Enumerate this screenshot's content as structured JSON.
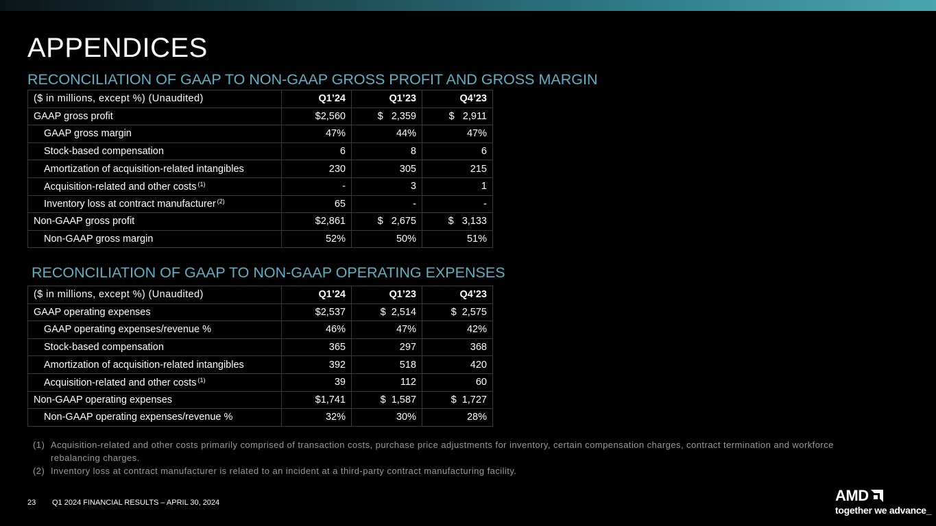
{
  "page_title": "APPENDICES",
  "section1": {
    "title": "RECONCILIATION OF GAAP TO NON-GAAP GROSS PROFIT AND GROSS MARGIN",
    "header": [
      "($ in millions, except %) (Unaudited)",
      "Q1’24",
      "Q1’23",
      "Q4’23"
    ],
    "rows": [
      {
        "label": "GAAP gross profit",
        "note": "",
        "values": [
          "$2,560",
          "$   2,359",
          "$   2,911"
        ]
      },
      {
        "label": "GAAP gross margin",
        "note": "",
        "values": [
          "47%",
          "44%",
          "47%"
        ]
      },
      {
        "label": "Stock-based compensation",
        "note": "",
        "values": [
          "6",
          "8",
          "6"
        ]
      },
      {
        "label": "Amortization of acquisition-related intangibles",
        "note": "",
        "values": [
          "230",
          "305",
          "215"
        ]
      },
      {
        "label": "Acquisition-related and other costs",
        "note": "(1)",
        "values": [
          "-",
          "3",
          "1"
        ]
      },
      {
        "label": "Inventory loss at contract manufacturer",
        "note": "(2)",
        "values": [
          "65",
          "-",
          "-"
        ]
      },
      {
        "label": "Non-GAAP gross profit",
        "note": "",
        "values": [
          "$2,861",
          "$   2,675",
          "$   3,133"
        ]
      },
      {
        "label": "Non-GAAP gross margin",
        "note": "",
        "values": [
          "52%",
          "50%",
          "51%"
        ]
      }
    ]
  },
  "section2": {
    "title": "RECONCILIATION OF GAAP TO NON-GAAP OPERATING EXPENSES",
    "header": [
      "($ in millions, except %) (Unaudited)",
      "Q1’24",
      "Q1’23",
      "Q4’23"
    ],
    "rows": [
      {
        "label": "GAAP operating expenses",
        "note": "",
        "values": [
          "$2,537",
          "$  2,514",
          "$  2,575"
        ]
      },
      {
        "label": "GAAP operating expenses/revenue %",
        "note": "",
        "values": [
          "46%",
          "47%",
          "42%"
        ]
      },
      {
        "label": "Stock-based compensation",
        "note": "",
        "values": [
          "365",
          "297",
          "368"
        ]
      },
      {
        "label": "Amortization of acquisition-related intangibles",
        "note": "",
        "values": [
          "392",
          "518",
          "420"
        ]
      },
      {
        "label": "Acquisition-related and other costs",
        "note": "(1)",
        "values": [
          "39",
          "112",
          "60"
        ]
      },
      {
        "label": "Non-GAAP operating expenses",
        "note": "",
        "values": [
          "$1,741",
          "$  1,587",
          "$  1,727"
        ]
      },
      {
        "label": "Non-GAAP operating expenses/revenue %",
        "note": "",
        "values": [
          "32%",
          "30%",
          "28%"
        ]
      }
    ]
  },
  "footnotes": [
    {
      "marker": "(1)",
      "text": "Acquisition-related and other costs primarily comprised of transaction costs, purchase price adjustments for inventory, certain compensation charges, contract termination and workforce rebalancing charges."
    },
    {
      "marker": "(2)",
      "text": "Inventory loss at contract manufacturer is related to an incident at a third-party contract manufacturing facility."
    }
  ],
  "footer": {
    "page_number": "23",
    "text": "Q1 2024 FINANCIAL RESULTS – APRIL 30, 2024"
  },
  "logo": {
    "wordmark": "AMD",
    "tagline": "together we advance_"
  }
}
